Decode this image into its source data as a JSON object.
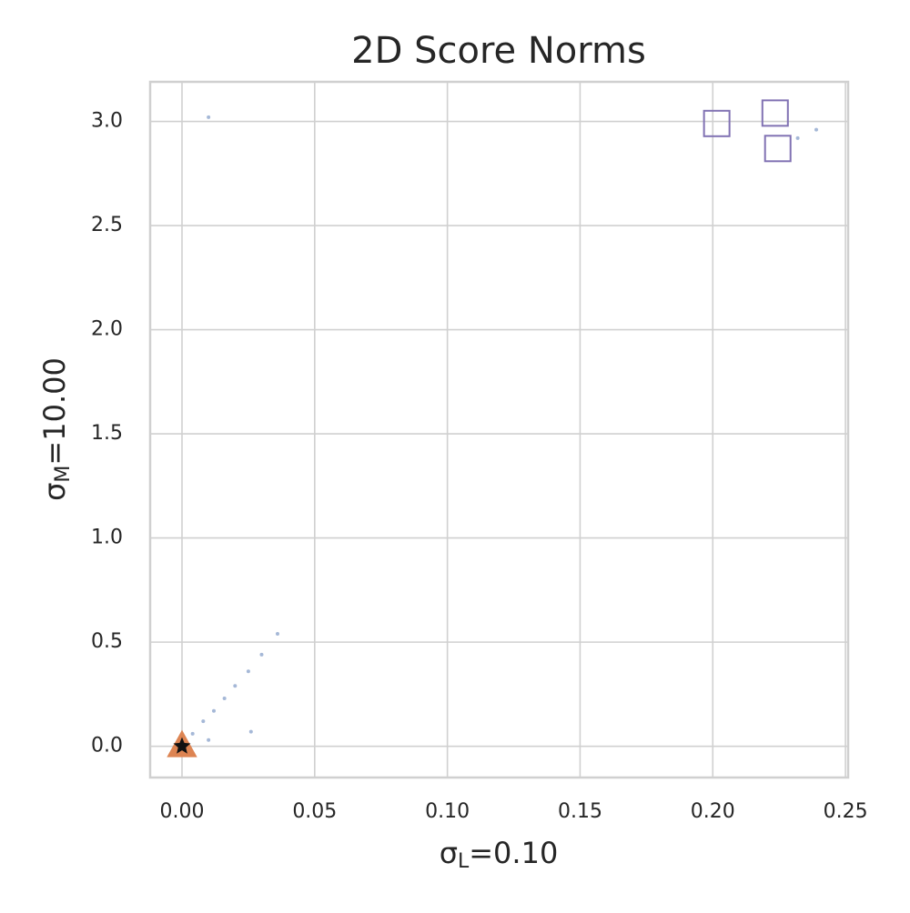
{
  "chart_data": {
    "type": "scatter",
    "title": "2D Score Norms",
    "xlabel": {
      "symbol": "σ",
      "subscript": "L",
      "text": "=0.10"
    },
    "ylabel": {
      "symbol": "σ",
      "subscript": "M",
      "text": "=10.00"
    },
    "xlim": [
      -0.012,
      0.251
    ],
    "ylim": [
      -0.15,
      3.19
    ],
    "xticks": [
      {
        "value": 0,
        "label": "0.00"
      },
      0.05,
      {
        "value": 0.1,
        "label": "0.10"
      },
      0.15,
      {
        "value": 0.2,
        "label": "0.20"
      },
      0.25
    ],
    "yticks": [
      {
        "value": 0,
        "label": "0.0"
      },
      0.5,
      {
        "value": 1,
        "label": "1.0"
      },
      1.5,
      {
        "value": 2,
        "label": "2.0"
      },
      2.5,
      {
        "value": 3,
        "label": "3.0"
      }
    ],
    "grid": true,
    "series": [
      {
        "color": "#4c72b0",
        "marker": "dot",
        "x": [
          0.001,
          0.004,
          0.008,
          0.012,
          0.016,
          0.02,
          0.025,
          0.03,
          0.036,
          0.01,
          0.026,
          0.01,
          0.239,
          0.232
        ],
        "values": [
          0.01,
          0.06,
          0.12,
          0.17,
          0.23,
          0.29,
          0.36,
          0.44,
          0.54,
          0.03,
          0.07,
          3.02,
          2.96,
          2.92
        ]
      },
      {
        "color": "#8172b3",
        "marker": "square",
        "x": [
          0.2015,
          0.2235,
          0.2245
        ],
        "values": [
          2.99,
          3.04,
          2.87
        ]
      },
      {
        "color": "#dd8452",
        "marker": "triangle",
        "x": [
          0
        ],
        "values": [
          0
        ]
      },
      {
        "color": "#111111",
        "marker": "star",
        "x": [
          0
        ],
        "values": [
          0
        ]
      }
    ]
  }
}
